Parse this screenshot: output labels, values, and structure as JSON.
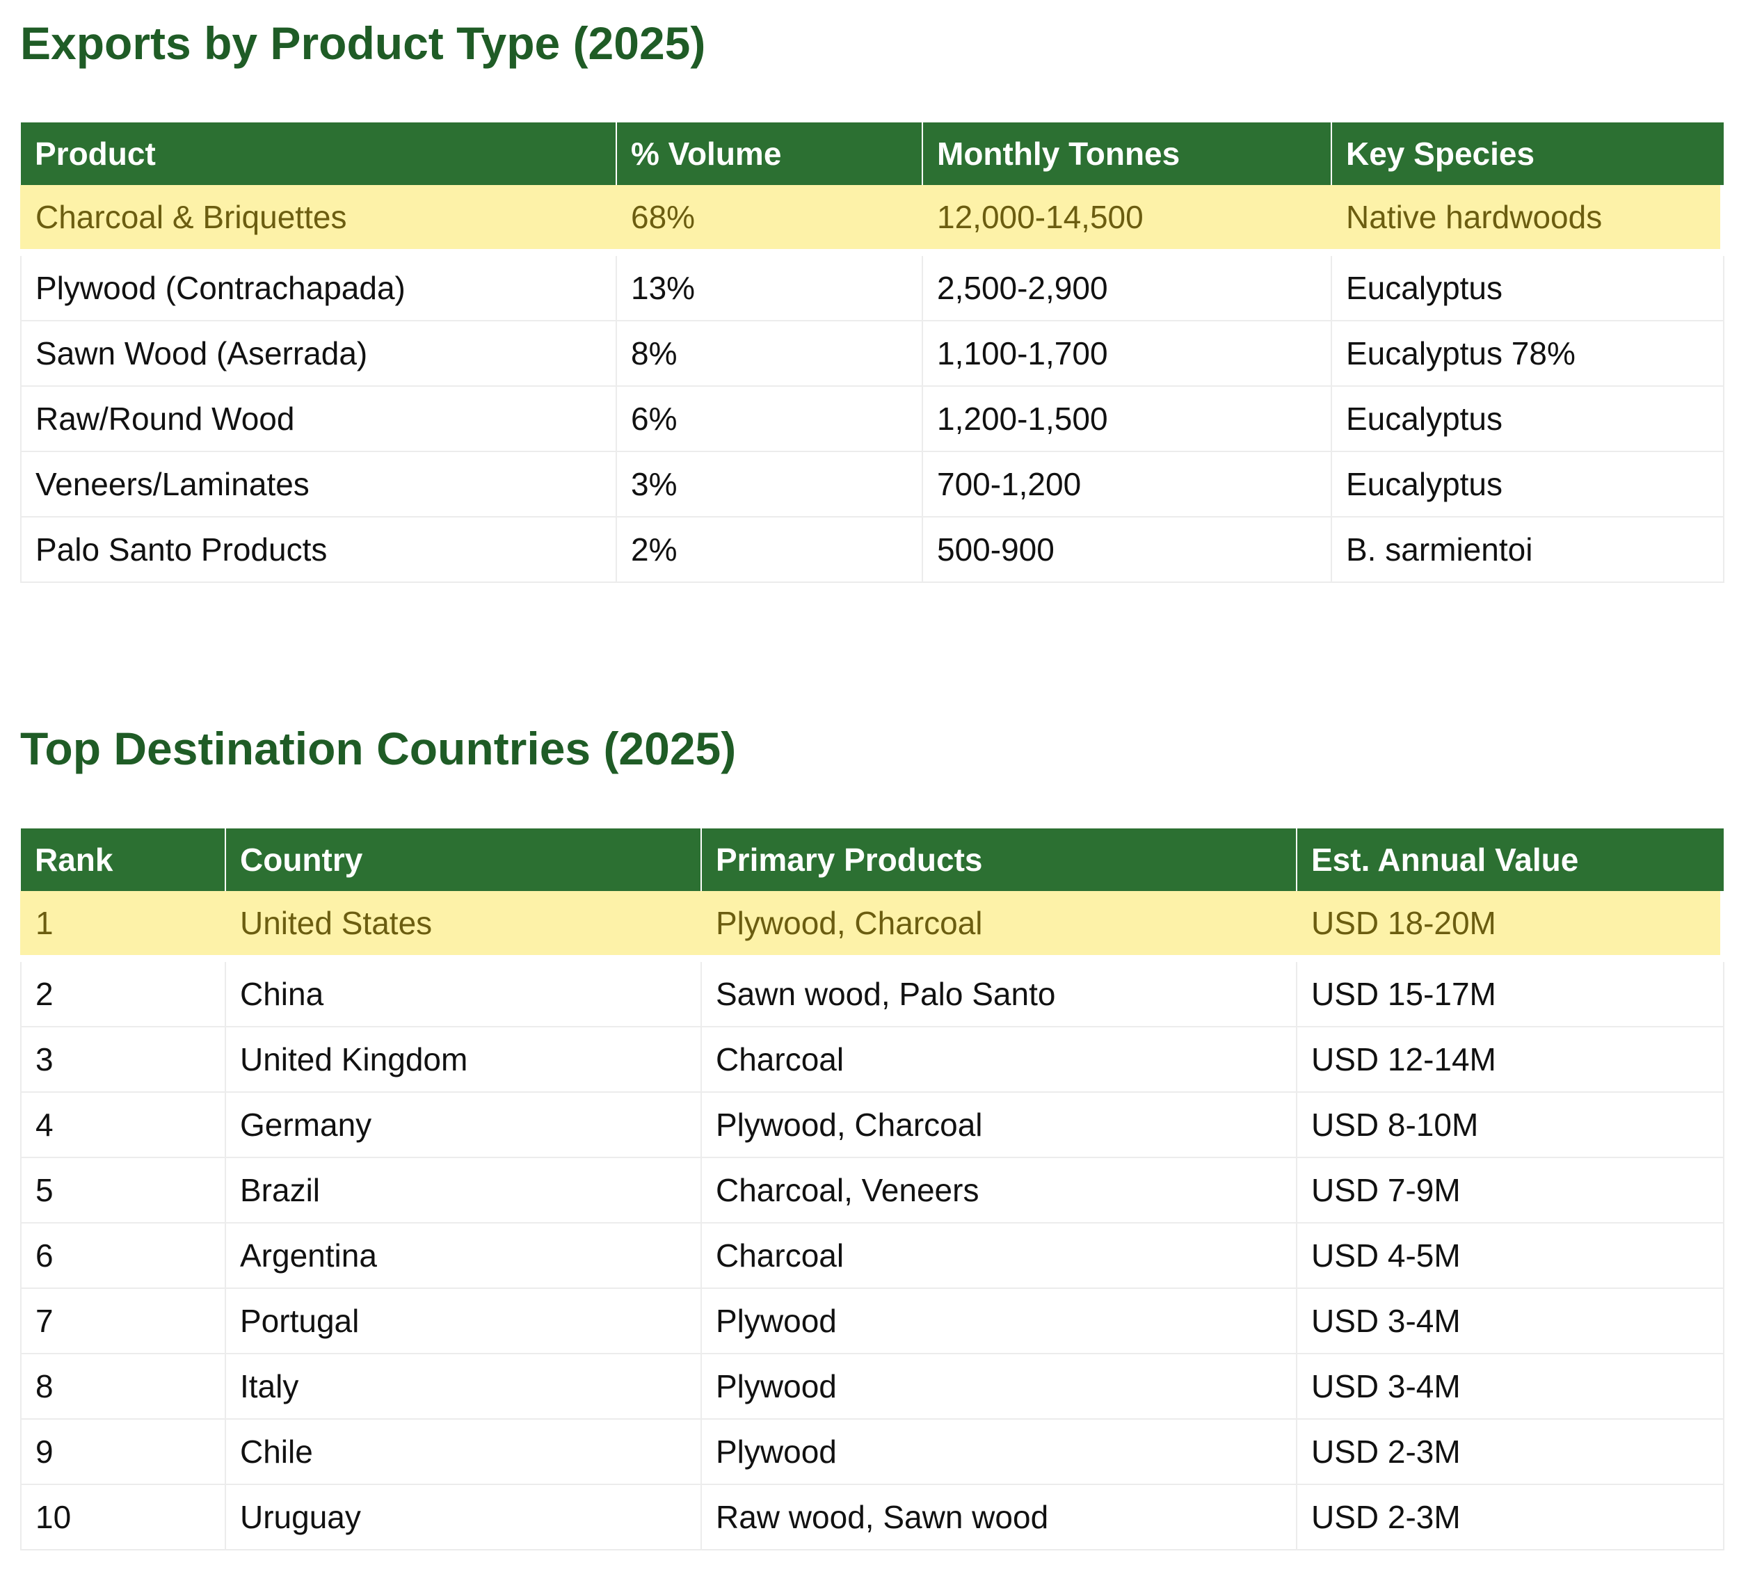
{
  "products_section": {
    "title": "Exports by Product Type (2025)",
    "headers": {
      "product": "Product",
      "volume": "% Volume",
      "tonnes": "Monthly Tonnes",
      "species": "Key Species"
    },
    "rows": [
      {
        "product": "Charcoal & Briquettes",
        "volume": "68%",
        "tonnes": "12,000-14,500",
        "species": "Native hardwoods",
        "highlight": true
      },
      {
        "product": "Plywood (Contrachapada)",
        "volume": "13%",
        "tonnes": "2,500-2,900",
        "species": "Eucalyptus"
      },
      {
        "product": "Sawn Wood (Aserrada)",
        "volume": "8%",
        "tonnes": "1,100-1,700",
        "species": "Eucalyptus 78%"
      },
      {
        "product": "Raw/Round Wood",
        "volume": "6%",
        "tonnes": "1,200-1,500",
        "species": "Eucalyptus"
      },
      {
        "product": "Veneers/Laminates",
        "volume": "3%",
        "tonnes": "700-1,200",
        "species": "Eucalyptus"
      },
      {
        "product": "Palo Santo Products",
        "volume": "2%",
        "tonnes": "500-900",
        "species": "B. sarmientoi"
      }
    ]
  },
  "countries_section": {
    "title": "Top Destination Countries (2025)",
    "headers": {
      "rank": "Rank",
      "country": "Country",
      "products": "Primary Products",
      "value": "Est. Annual Value"
    },
    "rows": [
      {
        "rank": "1",
        "country": "United States",
        "products": "Plywood, Charcoal",
        "value": "USD 18-20M",
        "highlight": true
      },
      {
        "rank": "2",
        "country": "China",
        "products": "Sawn wood, Palo Santo",
        "value": "USD 15-17M"
      },
      {
        "rank": "3",
        "country": "United Kingdom",
        "products": "Charcoal",
        "value": "USD 12-14M"
      },
      {
        "rank": "4",
        "country": "Germany",
        "products": "Plywood, Charcoal",
        "value": "USD 8-10M"
      },
      {
        "rank": "5",
        "country": "Brazil",
        "products": "Charcoal, Veneers",
        "value": "USD 7-9M"
      },
      {
        "rank": "6",
        "country": "Argentina",
        "products": "Charcoal",
        "value": "USD 4-5M"
      },
      {
        "rank": "7",
        "country": "Portugal",
        "products": "Plywood",
        "value": "USD 3-4M"
      },
      {
        "rank": "8",
        "country": "Italy",
        "products": "Plywood",
        "value": "USD 3-4M"
      },
      {
        "rank": "9",
        "country": "Chile",
        "products": "Plywood",
        "value": "USD 2-3M"
      },
      {
        "rank": "10",
        "country": "Uruguay",
        "products": "Raw wood, Sawn wood",
        "value": "USD 2-3M"
      }
    ]
  },
  "colors": {
    "heading_text": "#1f5c26",
    "header_bg": "#2c7032",
    "highlight_bg": "#fdf2a8",
    "highlight_text": "#6b5d10"
  }
}
